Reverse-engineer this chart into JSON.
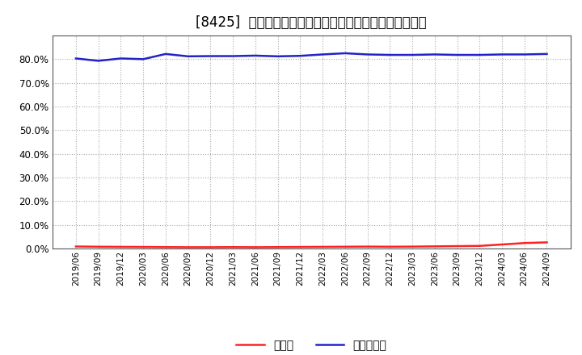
{
  "title": "[8425]  現預金、有利子負債の総資産に対する比率の推移",
  "x_labels": [
    "2019/06",
    "2019/09",
    "2019/12",
    "2020/03",
    "2020/06",
    "2020/09",
    "2020/12",
    "2021/03",
    "2021/06",
    "2021/09",
    "2021/12",
    "2022/03",
    "2022/06",
    "2022/09",
    "2022/12",
    "2023/03",
    "2023/06",
    "2023/09",
    "2023/12",
    "2024/03",
    "2024/06",
    "2024/09"
  ],
  "cash_ratio": [
    0.0085,
    0.0075,
    0.007,
    0.0065,
    0.006,
    0.0055,
    0.0055,
    0.006,
    0.0055,
    0.006,
    0.0065,
    0.007,
    0.0075,
    0.008,
    0.0075,
    0.008,
    0.009,
    0.01,
    0.011,
    0.017,
    0.023,
    0.026
  ],
  "debt_ratio": [
    0.803,
    0.793,
    0.803,
    0.8,
    0.822,
    0.812,
    0.813,
    0.813,
    0.815,
    0.812,
    0.814,
    0.82,
    0.825,
    0.82,
    0.818,
    0.818,
    0.82,
    0.818,
    0.818,
    0.82,
    0.82,
    0.822
  ],
  "cash_color": "#ff2222",
  "debt_color": "#2222cc",
  "background_color": "#ffffff",
  "plot_bg_color": "#ffffff",
  "grid_color": "#aaaaaa",
  "ylim": [
    0.0,
    0.9
  ],
  "yticks": [
    0.0,
    0.1,
    0.2,
    0.3,
    0.4,
    0.5,
    0.6,
    0.7,
    0.8
  ],
  "legend_cash": "現預金",
  "legend_debt": "有利子負債",
  "title_fontsize": 12,
  "tick_fontsize": 7.5,
  "line_width": 1.8
}
